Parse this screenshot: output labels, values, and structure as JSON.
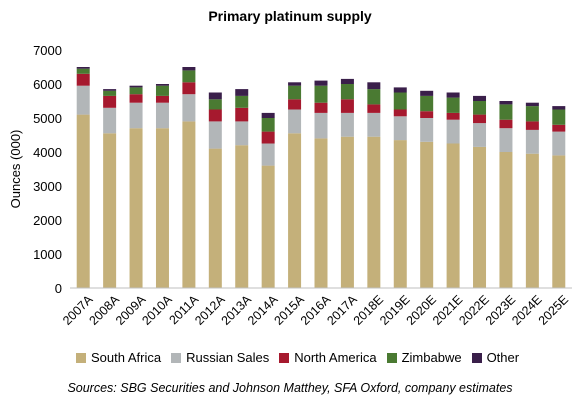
{
  "chart_data": {
    "type": "bar",
    "stacked": true,
    "title": "Primary platinum supply",
    "ylabel": "Ounces (000)",
    "xlabel": "",
    "ylim": [
      0,
      7000
    ],
    "yticks": [
      0,
      1000,
      2000,
      3000,
      4000,
      5000,
      6000,
      7000
    ],
    "grid": false,
    "legend_position": "bottom",
    "categories": [
      "2007A",
      "2008A",
      "2009A",
      "2010A",
      "2011A",
      "2012A",
      "2013A",
      "2014A",
      "2015A",
      "2016A",
      "2017A",
      "2018E",
      "2019E",
      "2020E",
      "2021E",
      "2022E",
      "2023E",
      "2024E",
      "2025E"
    ],
    "series": [
      {
        "name": "South Africa",
        "color": "#c4b07a",
        "values": [
          5100,
          4550,
          4700,
          4700,
          4900,
          4100,
          4200,
          3600,
          4550,
          4400,
          4450,
          4450,
          4350,
          4300,
          4250,
          4150,
          4000,
          3950,
          3900
        ]
      },
      {
        "name": "Russian Sales",
        "color": "#b2b6b8",
        "values": [
          850,
          750,
          750,
          750,
          800,
          800,
          700,
          650,
          700,
          750,
          700,
          700,
          700,
          700,
          700,
          700,
          700,
          700,
          700
        ]
      },
      {
        "name": "North America",
        "color": "#a6192e",
        "values": [
          350,
          350,
          250,
          200,
          350,
          350,
          400,
          350,
          300,
          300,
          400,
          250,
          200,
          200,
          200,
          250,
          250,
          250,
          200
        ]
      },
      {
        "name": "Zimbabwe",
        "color": "#4a7a32",
        "values": [
          150,
          150,
          200,
          300,
          350,
          300,
          350,
          400,
          400,
          500,
          450,
          450,
          500,
          450,
          450,
          400,
          450,
          450,
          450
        ]
      },
      {
        "name": "Other",
        "color": "#3a1f4a",
        "values": [
          50,
          50,
          50,
          50,
          100,
          200,
          200,
          150,
          100,
          150,
          150,
          200,
          150,
          150,
          150,
          150,
          100,
          100,
          100
        ]
      }
    ]
  },
  "source_note": "Sources:  SBG Securities and Johnson Matthey, SFA Oxford, company estimates"
}
